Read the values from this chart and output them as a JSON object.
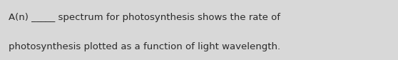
{
  "text_line1": "A(n) _____ spectrum for photosynthesis shows the rate of",
  "text_line2": "photosynthesis plotted as a function of light wavelength.",
  "background_color": "#d8d8d8",
  "text_color": "#2a2a2a",
  "font_size": 9.5,
  "fig_width": 5.58,
  "fig_height": 0.84,
  "dpi": 100
}
